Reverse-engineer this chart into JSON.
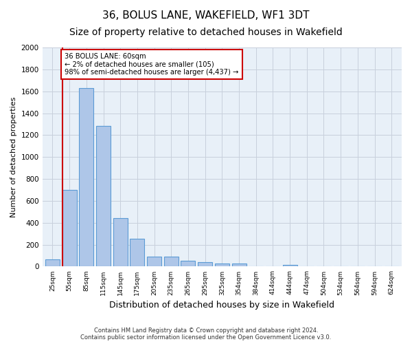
{
  "title": "36, BOLUS LANE, WAKEFIELD, WF1 3DT",
  "subtitle": "Size of property relative to detached houses in Wakefield",
  "xlabel": "Distribution of detached houses by size in Wakefield",
  "ylabel": "Number of detached properties",
  "categories": [
    "25sqm",
    "55sqm",
    "85sqm",
    "115sqm",
    "145sqm",
    "175sqm",
    "205sqm",
    "235sqm",
    "265sqm",
    "295sqm",
    "325sqm",
    "354sqm",
    "384sqm",
    "414sqm",
    "444sqm",
    "474sqm",
    "504sqm",
    "534sqm",
    "564sqm",
    "594sqm",
    "624sqm"
  ],
  "values": [
    65,
    700,
    1630,
    1285,
    445,
    252,
    88,
    88,
    50,
    40,
    28,
    28,
    0,
    0,
    18,
    0,
    0,
    0,
    0,
    0,
    0
  ],
  "bar_color": "#aec6e8",
  "bar_edge_color": "#5b9bd5",
  "property_line_color": "#cc0000",
  "annotation_text": "36 BOLUS LANE: 60sqm\n← 2% of detached houses are smaller (105)\n98% of semi-detached houses are larger (4,437) →",
  "annotation_box_color": "#cc0000",
  "ylim": [
    0,
    2000
  ],
  "yticks": [
    0,
    200,
    400,
    600,
    800,
    1000,
    1200,
    1400,
    1600,
    1800,
    2000
  ],
  "title_fontsize": 11,
  "subtitle_fontsize": 10,
  "xlabel_fontsize": 9,
  "ylabel_fontsize": 8,
  "footnote": "Contains HM Land Registry data © Crown copyright and database right 2024.\nContains public sector information licensed under the Open Government Licence v3.0.",
  "bg_color": "#ffffff",
  "plot_bg_color": "#e8f0f8",
  "grid_color": "#c8d0dc"
}
